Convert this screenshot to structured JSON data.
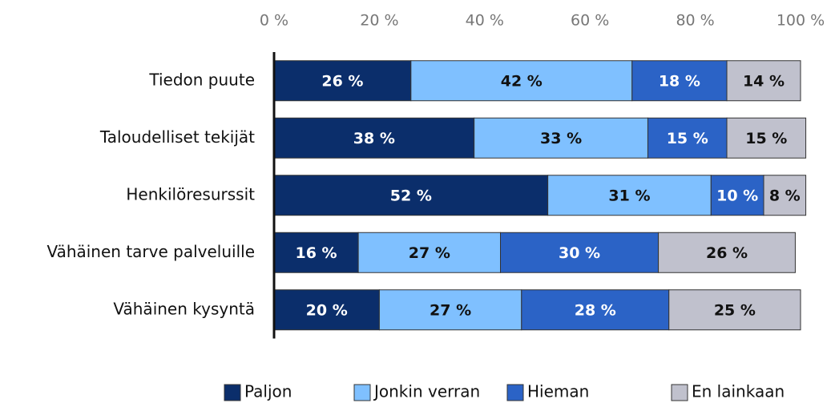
{
  "chart_data": {
    "type": "stacked-barh",
    "categories": [
      "Tiedon puute",
      "Taloudelliset tekijät",
      "Henkilöresurssit",
      "Vähäinen tarve palveluille",
      "Vähäinen kysyntä"
    ],
    "series": [
      {
        "name": "Paljon",
        "color": "#0b2e6b",
        "values": [
          26,
          38,
          52,
          16,
          20
        ],
        "value_labels": [
          "26 %",
          "38 %",
          "52 %",
          "16 %",
          "20 %"
        ]
      },
      {
        "name": "Jonkin verran",
        "color": "#7fc0ff",
        "values": [
          42,
          33,
          31,
          27,
          27
        ],
        "value_labels": [
          "42 %",
          "33 %",
          "31 %",
          "27 %",
          "27 %"
        ]
      },
      {
        "name": "Hieman",
        "color": "#2b63c6",
        "values": [
          18,
          15,
          10,
          30,
          28
        ],
        "value_labels": [
          "18 %",
          "15 %",
          "10 %",
          "30 %",
          "28 %"
        ]
      },
      {
        "name": "En lainkaan",
        "color": "#c0c1cd",
        "values": [
          14,
          15,
          8,
          26,
          25
        ],
        "value_labels": [
          "14 %",
          "15 %",
          "8 %",
          "26 %",
          "25 %"
        ]
      }
    ],
    "xlim": [
      0,
      100
    ],
    "xticks": [
      {
        "value": 0,
        "label": "0 %"
      },
      {
        "value": 20,
        "label": "20 %"
      },
      {
        "value": 40,
        "label": "40 %"
      },
      {
        "value": 60,
        "label": "60 %"
      },
      {
        "value": 80,
        "label": "80 %"
      },
      {
        "value": 100,
        "label": "100 %"
      }
    ],
    "legend": "bottom"
  }
}
